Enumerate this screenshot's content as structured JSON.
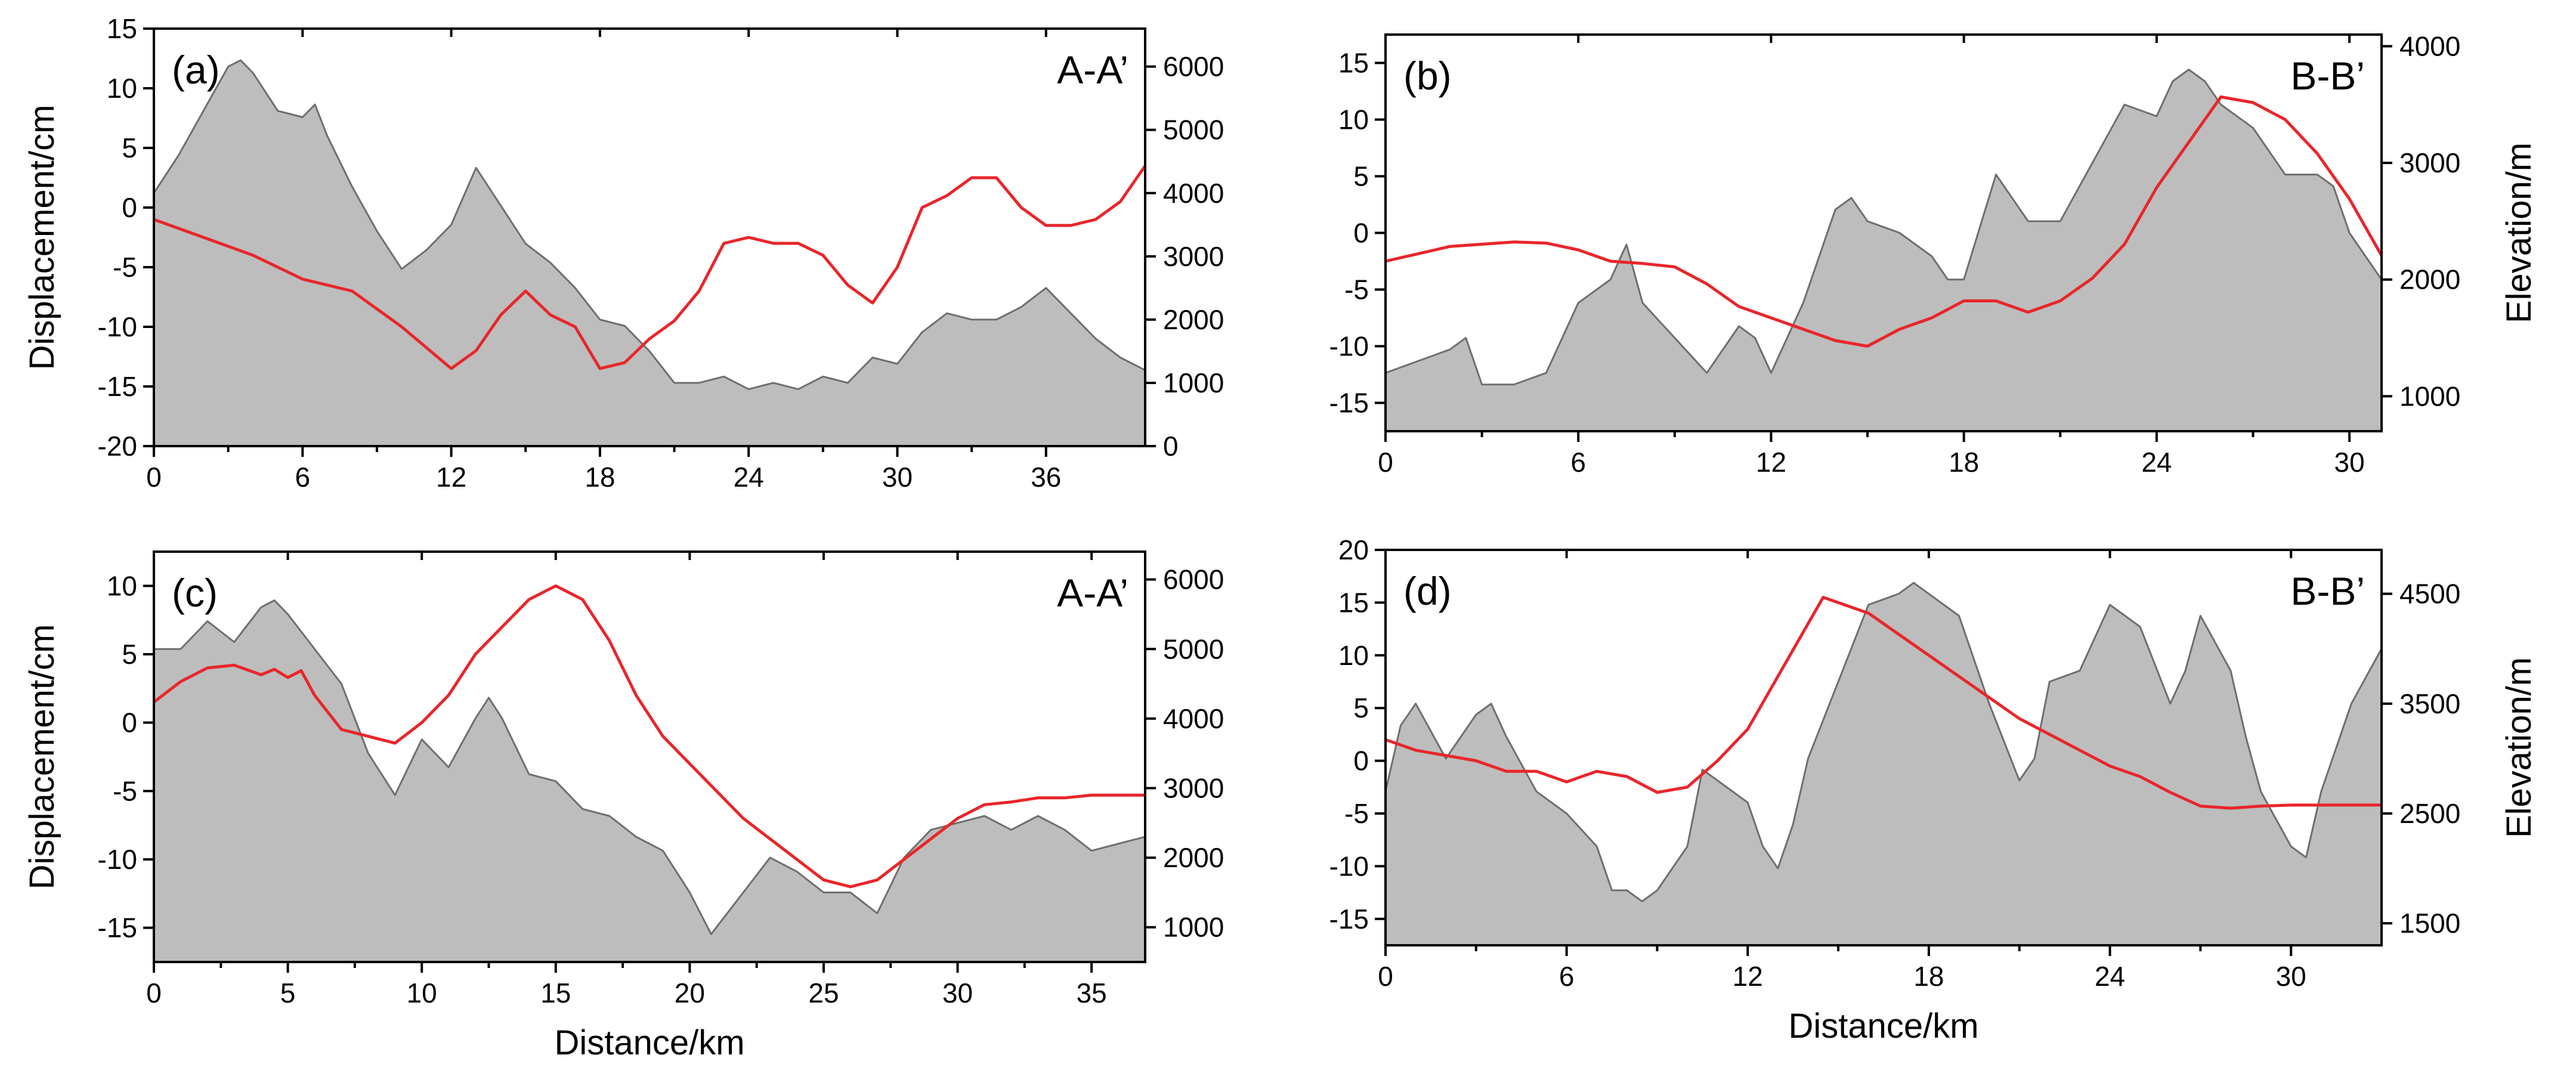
{
  "chart_data": [
    {
      "type": "area",
      "panel_label": "(a)",
      "profile_label": "A-A’",
      "xlabel": "",
      "ylabel": "Displacement/cm",
      "y2label": "",
      "xlim": [
        0,
        40
      ],
      "ylim": [
        -20,
        15
      ],
      "y2lim": [
        0,
        6600
      ],
      "xticks": [
        "0",
        "6",
        "12",
        "18",
        "24",
        "30",
        "36"
      ],
      "yticks": [
        "15",
        "10",
        "5",
        "0",
        "-5",
        "-10",
        "-15",
        "-20"
      ],
      "y2ticks": [
        "6000",
        "5000",
        "4000",
        "3000",
        "2000",
        "1000",
        "0"
      ],
      "xtick_values": [
        0,
        6,
        12,
        18,
        24,
        30,
        36
      ],
      "ytick_values": [
        15,
        10,
        5,
        0,
        -5,
        -10,
        -15,
        -20
      ],
      "y2tick_values": [
        6000,
        5000,
        4000,
        3000,
        2000,
        1000,
        0
      ],
      "colors": {
        "elevation_fill": "#bdbdbd",
        "elevation_stroke": "#6e6e6e",
        "displacement_line": "#e8262b"
      },
      "series": [
        {
          "axis": "right",
          "style": "filled-area",
          "x": [
            0,
            1,
            2,
            3,
            3.5,
            4,
            5,
            6,
            6.5,
            7,
            8,
            9,
            10,
            11,
            12,
            13,
            14,
            15,
            16,
            17,
            18,
            19,
            20,
            21,
            22,
            23,
            24,
            25,
            26,
            27,
            28,
            29,
            30,
            31,
            32,
            33,
            34,
            35,
            36,
            37,
            38,
            39,
            40
          ],
          "y": [
            4000,
            4600,
            5300,
            6000,
            6100,
            5900,
            5300,
            5200,
            5400,
            4900,
            4100,
            3400,
            2800,
            3100,
            3500,
            4400,
            3800,
            3200,
            2900,
            2500,
            2000,
            1900,
            1500,
            1000,
            1000,
            1100,
            900,
            1000,
            900,
            1100,
            1000,
            1400,
            1300,
            1800,
            2100,
            2000,
            2000,
            2200,
            2500,
            2100,
            1700,
            1400,
            1200
          ]
        },
        {
          "axis": "left",
          "style": "line",
          "x": [
            0,
            2,
            4,
            6,
            8,
            10,
            12,
            13,
            14,
            15,
            16,
            17,
            18,
            19,
            20,
            21,
            22,
            23,
            24,
            25,
            26,
            27,
            28,
            29,
            30,
            31,
            32,
            33,
            34,
            35,
            36,
            37,
            38,
            39,
            40
          ],
          "y": [
            -1,
            -2.5,
            -4,
            -6,
            -7,
            -10,
            -13.5,
            -12,
            -9,
            -7,
            -9,
            -10,
            -13.5,
            -13,
            -11,
            -9.5,
            -7,
            -3,
            -2.5,
            -3,
            -3,
            -4,
            -6.5,
            -8,
            -5,
            0,
            1,
            2.5,
            2.5,
            0,
            -1.5,
            -1.5,
            -1,
            0.5,
            3.5
          ]
        }
      ]
    },
    {
      "type": "area",
      "panel_label": "(b)",
      "profile_label": "B-B’",
      "xlabel": "",
      "ylabel": "",
      "y2label": "Elevation/m",
      "xlim": [
        0,
        31
      ],
      "ylim": [
        -17.5,
        17.5
      ],
      "y2lim": [
        700,
        4100
      ],
      "xticks": [
        "0",
        "6",
        "12",
        "18",
        "24",
        "30"
      ],
      "yticks": [
        "15",
        "10",
        "5",
        "0",
        "-5",
        "-10",
        "-15"
      ],
      "y2ticks": [
        "4000",
        "3000",
        "2000",
        "1000"
      ],
      "xtick_values": [
        0,
        6,
        12,
        18,
        24,
        30
      ],
      "ytick_values": [
        15,
        10,
        5,
        0,
        -5,
        -10,
        -15
      ],
      "y2tick_values": [
        4000,
        3000,
        2000,
        1000
      ],
      "colors": {
        "elevation_fill": "#bdbdbd",
        "elevation_stroke": "#6e6e6e",
        "displacement_line": "#e8262b"
      },
      "series": [
        {
          "axis": "right",
          "style": "filled-area",
          "x": [
            0,
            1,
            2,
            2.5,
            3,
            4,
            5,
            6,
            7,
            7.5,
            8,
            9,
            10,
            11,
            11.5,
            12,
            13,
            14,
            14.5,
            15,
            16,
            17,
            17.5,
            18,
            19,
            20,
            21,
            22,
            23,
            24,
            24.5,
            25,
            25.5,
            26,
            27,
            28,
            29,
            29.5,
            30,
            31
          ],
          "y": [
            1200,
            1300,
            1400,
            1500,
            1100,
            1100,
            1200,
            1800,
            2000,
            2300,
            1800,
            1500,
            1200,
            1600,
            1500,
            1200,
            1800,
            2600,
            2700,
            2500,
            2400,
            2200,
            2000,
            2000,
            2900,
            2500,
            2500,
            3000,
            3500,
            3400,
            3700,
            3800,
            3700,
            3500,
            3300,
            2900,
            2900,
            2800,
            2400,
            2000
          ]
        },
        {
          "axis": "left",
          "style": "line",
          "x": [
            0,
            2,
            4,
            5,
            6,
            7,
            8,
            9,
            10,
            11,
            12,
            13,
            14,
            15,
            16,
            17,
            18,
            19,
            20,
            21,
            22,
            23,
            24,
            25,
            26,
            27,
            28,
            29,
            30,
            31
          ],
          "y": [
            -2.5,
            -1.2,
            -0.8,
            -0.9,
            -1.5,
            -2.5,
            -2.7,
            -3,
            -4.5,
            -6.5,
            -7.5,
            -8.5,
            -9.5,
            -10,
            -8.5,
            -7.5,
            -6,
            -6,
            -7,
            -6,
            -4,
            -1,
            4,
            8,
            12,
            11.5,
            10,
            7,
            3,
            -2
          ]
        }
      ]
    },
    {
      "type": "area",
      "panel_label": "(c)",
      "profile_label": "A-A’",
      "xlabel": "Distance/km",
      "ylabel": "Displacement/cm",
      "y2label": "",
      "xlim": [
        0,
        37
      ],
      "ylim": [
        -17.5,
        12.5
      ],
      "y2lim": [
        500,
        6400
      ],
      "xticks": [
        "0",
        "5",
        "10",
        "15",
        "20",
        "25",
        "30",
        "35"
      ],
      "yticks": [
        "10",
        "5",
        "0",
        "-5",
        "-10",
        "-15"
      ],
      "y2ticks": [
        "6000",
        "5000",
        "4000",
        "3000",
        "2000",
        "1000"
      ],
      "xtick_values": [
        0,
        5,
        10,
        15,
        20,
        25,
        30,
        35
      ],
      "ytick_values": [
        10,
        5,
        0,
        -5,
        -10,
        -15
      ],
      "y2tick_values": [
        6000,
        5000,
        4000,
        3000,
        2000,
        1000
      ],
      "colors": {
        "elevation_fill": "#bdbdbd",
        "elevation_stroke": "#6e6e6e",
        "displacement_line": "#e8262b"
      },
      "series": [
        {
          "axis": "right",
          "style": "filled-area",
          "x": [
            0,
            1,
            2,
            3,
            4,
            4.5,
            5,
            6,
            7,
            8,
            9,
            10,
            11,
            12,
            12.5,
            13,
            14,
            15,
            16,
            17,
            18,
            19,
            20,
            20.8,
            21,
            22,
            23,
            24,
            25,
            26,
            27,
            28,
            29,
            30,
            31,
            32,
            33,
            34,
            35,
            36,
            37
          ],
          "y": [
            5000,
            5000,
            5400,
            5100,
            5600,
            5700,
            5500,
            5000,
            4500,
            3500,
            2900,
            3700,
            3300,
            4000,
            4300,
            4000,
            3200,
            3100,
            2700,
            2600,
            2300,
            2100,
            1500,
            900,
            1000,
            1500,
            2000,
            1800,
            1500,
            1500,
            1200,
            2000,
            2400,
            2500,
            2600,
            2400,
            2600,
            2400,
            2100,
            2200,
            2300
          ]
        },
        {
          "axis": "left",
          "style": "line",
          "x": [
            0,
            1,
            2,
            3,
            4,
            4.5,
            5,
            5.5,
            6,
            7,
            8,
            9,
            10,
            11,
            12,
            13,
            14,
            15,
            16,
            17,
            18,
            19,
            20,
            21,
            22,
            23,
            24,
            25,
            26,
            27,
            28,
            29,
            30,
            31,
            32,
            33,
            34,
            35,
            36,
            37
          ],
          "y": [
            1.5,
            3,
            4,
            4.2,
            3.5,
            3.9,
            3.3,
            3.8,
            2,
            -0.5,
            -1,
            -1.5,
            0,
            2,
            5,
            7,
            9,
            10,
            9,
            6,
            2,
            -1,
            -3,
            -5,
            -7,
            -8.5,
            -10,
            -11.5,
            -12,
            -11.5,
            -10,
            -8.5,
            -7,
            -6,
            -5.8,
            -5.5,
            -5.5,
            -5.3,
            -5.3,
            -5.3
          ]
        }
      ]
    },
    {
      "type": "area",
      "panel_label": "(d)",
      "profile_label": "B-B’",
      "xlabel": "Distance/km",
      "ylabel": "",
      "y2label": "Elevation/m",
      "xlim": [
        0,
        33
      ],
      "ylim": [
        -17.5,
        20
      ],
      "y2lim": [
        1300,
        4900
      ],
      "xticks": [
        "0",
        "6",
        "12",
        "18",
        "24",
        "30"
      ],
      "yticks": [
        "20",
        "15",
        "10",
        "5",
        "0",
        "-5",
        "-10",
        "-15"
      ],
      "y2ticks": [
        "4500",
        "3500",
        "2500",
        "1500"
      ],
      "xtick_values": [
        0,
        6,
        12,
        18,
        24,
        30
      ],
      "ytick_values": [
        20,
        15,
        10,
        5,
        0,
        -5,
        -10,
        -15
      ],
      "y2tick_values": [
        4500,
        3500,
        2500,
        1500
      ],
      "colors": {
        "elevation_fill": "#bdbdbd",
        "elevation_stroke": "#6e6e6e",
        "displacement_line": "#e8262b"
      },
      "series": [
        {
          "axis": "right",
          "style": "filled-area",
          "x": [
            0,
            0.5,
            1,
            2,
            3,
            3.5,
            4,
            5,
            6,
            7,
            7.5,
            8,
            8.5,
            9,
            10,
            10.5,
            11,
            12,
            12.5,
            13,
            13.5,
            14,
            15,
            16,
            17,
            17.5,
            18,
            19,
            20,
            21,
            21.5,
            22,
            23,
            24,
            24.5,
            25,
            26,
            26.5,
            27,
            28,
            28.5,
            29,
            30,
            30.5,
            31,
            32,
            33
          ],
          "y": [
            2700,
            3300,
            3500,
            3000,
            3400,
            3500,
            3200,
            2700,
            2500,
            2200,
            1800,
            1800,
            1700,
            1800,
            2200,
            2900,
            2800,
            2600,
            2200,
            2000,
            2400,
            3000,
            3700,
            4400,
            4500,
            4600,
            4500,
            4300,
            3500,
            2800,
            3000,
            3700,
            3800,
            4400,
            4300,
            4200,
            3500,
            3800,
            4300,
            3800,
            3200,
            2700,
            2200,
            2100,
            2700,
            3500,
            4000
          ]
        },
        {
          "axis": "left",
          "style": "line",
          "x": [
            0,
            1,
            2,
            3,
            4,
            5,
            6,
            7,
            8,
            9,
            10,
            11,
            12,
            13,
            14,
            14.5,
            15,
            16,
            17,
            18,
            19,
            20,
            21,
            22,
            23,
            24,
            25,
            26,
            27,
            28,
            29,
            30,
            31,
            32,
            33
          ],
          "y": [
            2,
            1,
            0.5,
            0,
            -1,
            -1,
            -2,
            -1,
            -1.5,
            -3,
            -2.5,
            0,
            3,
            8,
            13,
            15.5,
            15,
            14,
            12,
            10,
            8,
            6,
            4,
            2.5,
            1,
            -0.5,
            -1.5,
            -3,
            -4.3,
            -4.5,
            -4.3,
            -4.2,
            -4.2,
            -4.2,
            -4.2
          ]
        }
      ]
    }
  ]
}
